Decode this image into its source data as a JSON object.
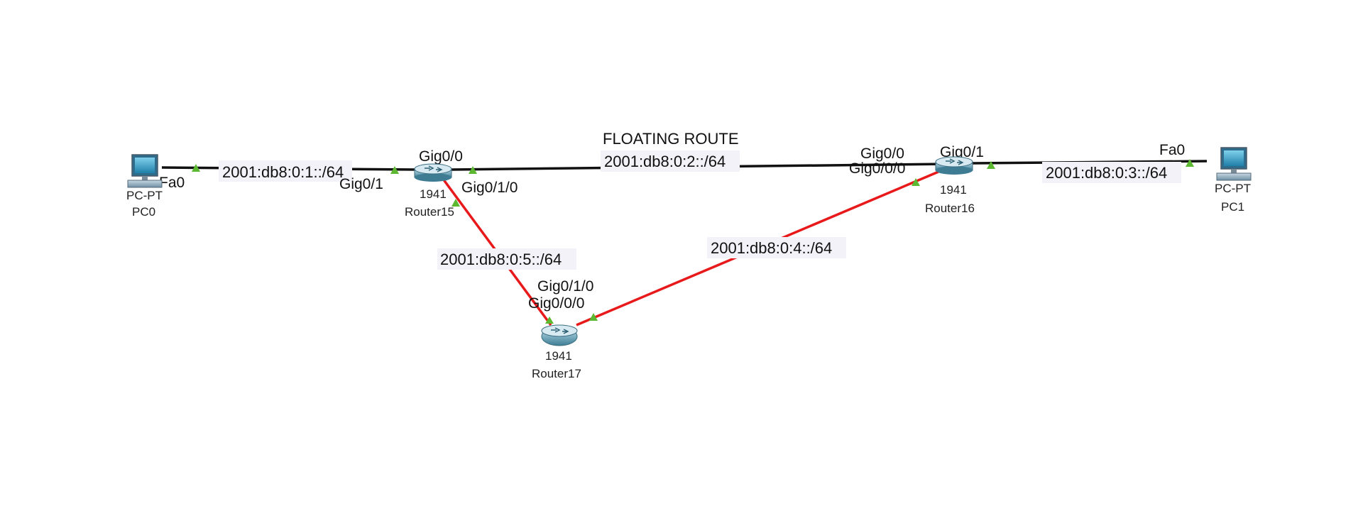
{
  "annotation": {
    "title": "FLOATING ROUTE"
  },
  "devices": {
    "pc0": {
      "model": "PC-PT",
      "name": "PC0"
    },
    "pc1": {
      "model": "PC-PT",
      "name": "PC1"
    },
    "router15": {
      "model": "1941",
      "name": "Router15"
    },
    "router16": {
      "model": "1941",
      "name": "Router16"
    },
    "router17": {
      "model": "1941",
      "name": "Router17"
    }
  },
  "networks": {
    "net1": "2001:db8:0:1::/64",
    "net2": "2001:db8:0:2::/64",
    "net3": "2001:db8:0:3::/64",
    "net4": "2001:db8:0:4::/64",
    "net5": "2001:db8:0:5::/64"
  },
  "ports": {
    "pc0_fa0": "Fa0",
    "r15_gig0_1": "Gig0/1",
    "r15_gig0_0": "Gig0/0",
    "r15_gig0_1_0": "Gig0/1/0",
    "r16_gig0_0": "Gig0/0",
    "r16_gig0_0_0": "Gig0/0/0",
    "r16_gig0_1": "Gig0/1",
    "pc1_fa0": "Fa0",
    "r17_gig0_1_0": "Gig0/1/0",
    "r17_gig0_0_0": "Gig0/0/0"
  },
  "colors": {
    "copper_link": "#111111",
    "red_link": "#e8191a",
    "port_up": "#5cb830",
    "router_body": "#6aa0b4",
    "label_bg": "#f2f2f8"
  }
}
